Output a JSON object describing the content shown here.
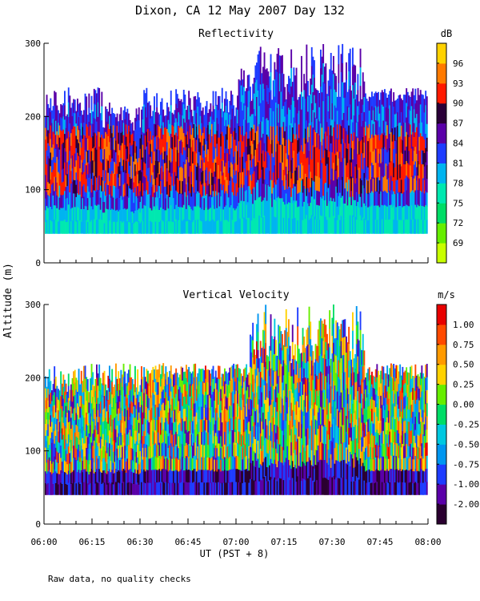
{
  "figure": {
    "title": "Dixon, CA 12 May 2007  Day 132",
    "ylabel_shared": "Altitude (m)",
    "xlabel": "UT  (PST + 8)",
    "footnote": "Raw data, no quality checks"
  },
  "chart_data": [
    {
      "type": "heatmap",
      "title": "Reflectivity",
      "x_time_ticks": [
        "06:00",
        "06:15",
        "06:30",
        "06:45",
        "07:00",
        "07:15",
        "07:30",
        "07:45",
        "08:00"
      ],
      "xlim_minutes_after_0600": [
        0,
        120
      ],
      "ylim": [
        0,
        300
      ],
      "yticks": [
        "0",
        "100",
        "200",
        "300"
      ],
      "colorbar": {
        "unit": "dB",
        "labels": [
          "69",
          "72",
          "75",
          "78",
          "81",
          "84",
          "87",
          "90",
          "93",
          "96"
        ],
        "colors": [
          "#c8ff00",
          "#66ee00",
          "#00dd66",
          "#00e8b0",
          "#00b4f0",
          "#1e3cff",
          "#5a00a8",
          "#2a0038",
          "#ff1a00",
          "#ff7a00",
          "#ffd200"
        ]
      },
      "profile": {
        "base_m": 40,
        "top_m_segments": [
          {
            "from_min": 0,
            "to_min": 18,
            "top_m": [
              200,
              240
            ]
          },
          {
            "from_min": 18,
            "to_min": 30,
            "top_m": [
              180,
              220
            ]
          },
          {
            "from_min": 30,
            "to_min": 60,
            "top_m": [
              200,
              240
            ]
          },
          {
            "from_min": 60,
            "to_min": 100,
            "top_m": [
              220,
              300
            ]
          },
          {
            "from_min": 100,
            "to_min": 120,
            "top_m": [
              220,
              240
            ]
          }
        ],
        "strong_echo_layer_m": [
          90,
          190
        ]
      }
    },
    {
      "type": "heatmap",
      "title": "Vertical Velocity",
      "x_time_ticks": [
        "06:00",
        "06:15",
        "06:30",
        "06:45",
        "07:00",
        "07:15",
        "07:30",
        "07:45",
        "08:00"
      ],
      "xlim_minutes_after_0600": [
        0,
        120
      ],
      "ylim": [
        0,
        300
      ],
      "yticks": [
        "0",
        "100",
        "200",
        "300"
      ],
      "colorbar": {
        "unit": "m/s",
        "labels": [
          "-2.00",
          "-1.00",
          "-0.75",
          "-0.50",
          "-0.25",
          "0.00",
          "0.25",
          "0.50",
          "0.75",
          "1.00"
        ],
        "colors": [
          "#2a0030",
          "#5a00a8",
          "#1e3cff",
          "#0096f0",
          "#00c8e0",
          "#00dd66",
          "#66ee00",
          "#ffd200",
          "#ff9a00",
          "#ff4a00",
          "#e80000"
        ]
      },
      "profile": {
        "base_m": 40,
        "top_m_segments": [
          {
            "from_min": 0,
            "to_min": 30,
            "top_m": [
              180,
              220
            ]
          },
          {
            "from_min": 30,
            "to_min": 64,
            "top_m": [
              200,
              220
            ]
          },
          {
            "from_min": 64,
            "to_min": 100,
            "top_m": [
              220,
              300
            ]
          },
          {
            "from_min": 100,
            "to_min": 120,
            "top_m": [
              200,
              220
            ]
          }
        ]
      }
    }
  ]
}
